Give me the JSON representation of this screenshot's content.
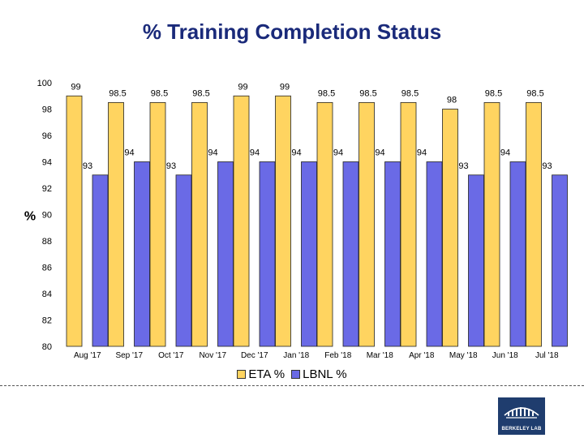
{
  "chart_data": {
    "type": "bar",
    "title": "% Training Completion Status",
    "xlabel": "",
    "ylabel": "%",
    "ylim": [
      80,
      100
    ],
    "yticks": [
      80,
      82,
      84,
      86,
      88,
      90,
      92,
      94,
      96,
      98,
      100
    ],
    "categories": [
      "Aug '17",
      "Sep '17",
      "Oct '17",
      "Nov '17",
      "Dec '17",
      "Jan '18",
      "Feb '18",
      "Mar '18",
      "Apr '18",
      "May '18",
      "Jun '18",
      "Jul '18"
    ],
    "series": [
      {
        "name": "ETA %",
        "color": "#ffd460",
        "values": [
          99,
          98.5,
          98.5,
          98.5,
          99,
          99,
          98.5,
          98.5,
          98.5,
          98,
          98.5,
          98.5
        ]
      },
      {
        "name": "LBNL %",
        "color": "#6a6ae6",
        "values": [
          93,
          94,
          93,
          94,
          94,
          94,
          94,
          94,
          94,
          93,
          94,
          93
        ]
      }
    ],
    "legend": "bottom",
    "grid": false
  },
  "footer": {
    "logo_text": "BERKELEY LAB"
  }
}
